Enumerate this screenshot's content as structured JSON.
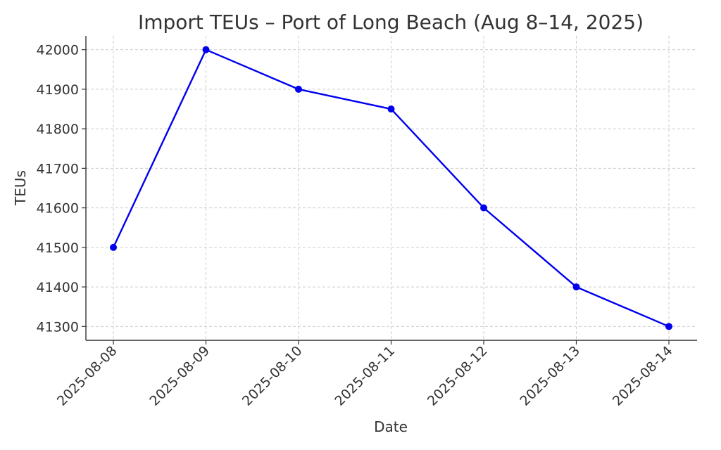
{
  "chart_data": {
    "type": "line",
    "title": "Import TEUs – Port of Long Beach (Aug 8–14, 2025)",
    "xlabel": "Date",
    "ylabel": "TEUs",
    "categories": [
      "2025-08-08",
      "2025-08-09",
      "2025-08-10",
      "2025-08-11",
      "2025-08-12",
      "2025-08-13",
      "2025-08-14"
    ],
    "series": [
      {
        "values": [
          41500,
          42000,
          41900,
          41850,
          41600,
          41400,
          41300
        ],
        "color": "#0000ee",
        "marker": "circle"
      }
    ],
    "yticks": [
      41300,
      41400,
      41500,
      41600,
      41700,
      41800,
      41900,
      42000
    ],
    "ylim": [
      41265,
      42035
    ],
    "grid": true,
    "x_tick_rotation": 45
  }
}
